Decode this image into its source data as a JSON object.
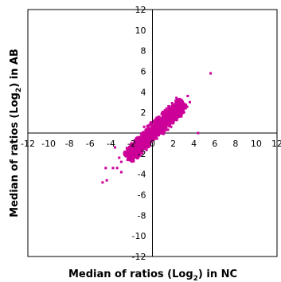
{
  "chart_data": {
    "type": "scatter",
    "xlabel": "Median of ratios (Log2) in NC",
    "ylabel": "Median of ratios (Log2) in AB",
    "xlabel_parts": {
      "pre": "Median of ratios (Log",
      "sub": "2",
      "post": ") in NC"
    },
    "ylabel_parts": {
      "pre": "Median of ratios (Log",
      "sub": "2",
      "post": ") in AB"
    },
    "xlim": [
      -12,
      12
    ],
    "ylim": [
      -12,
      12
    ],
    "xticks": [
      -12,
      -10,
      -8,
      -6,
      -4,
      -2,
      0,
      2,
      4,
      6,
      8,
      10,
      12
    ],
    "yticks": [
      -12,
      -10,
      -8,
      -6,
      -4,
      -2,
      2,
      4,
      6,
      8,
      10,
      12
    ],
    "grid": false,
    "axes_cross_at_origin": true,
    "marker_color": "#cc0099",
    "series": [
      {
        "x": [
          5.6,
          3.4,
          2.6,
          2.3,
          2.0,
          1.7,
          1.3,
          1.0,
          0.6,
          0.3,
          0.0,
          -0.3,
          -0.6,
          -1.0,
          -1.4,
          -1.8,
          -2.2,
          -2.6,
          -3.0,
          -3.4,
          -3.8,
          -4.4,
          -4.8,
          -4.5,
          -3.0,
          -2.5,
          2.5,
          4.4,
          3.2,
          -0.8,
          0.5,
          1.4,
          1.6,
          1.2,
          0.7,
          3.0,
          2.0,
          1.0,
          -1.6,
          -2.4,
          -3.2,
          -3.6,
          -2.0,
          -0.2,
          0.9,
          1.8,
          2.8,
          3.6,
          -1.2,
          -0.5
        ],
        "y": [
          5.8,
          3.6,
          2.8,
          3.0,
          2.2,
          1.4,
          1.8,
          0.8,
          1.2,
          0.4,
          0.0,
          -0.5,
          -0.2,
          -1.0,
          -0.6,
          -1.6,
          -1.4,
          -2.2,
          -2.8,
          -3.4,
          -3.4,
          -4.6,
          -4.8,
          -3.4,
          -3.8,
          -2.2,
          1.8,
          0.0,
          2.4,
          0.6,
          -0.2,
          1.0,
          2.6,
          2.2,
          0.3,
          2.0,
          1.0,
          1.6,
          -0.8,
          -2.6,
          -2.4,
          -1.4,
          -1.2,
          0.3,
          0.2,
          0.6,
          3.2,
          3.0,
          -1.8,
          -1.4
        ]
      }
    ]
  }
}
